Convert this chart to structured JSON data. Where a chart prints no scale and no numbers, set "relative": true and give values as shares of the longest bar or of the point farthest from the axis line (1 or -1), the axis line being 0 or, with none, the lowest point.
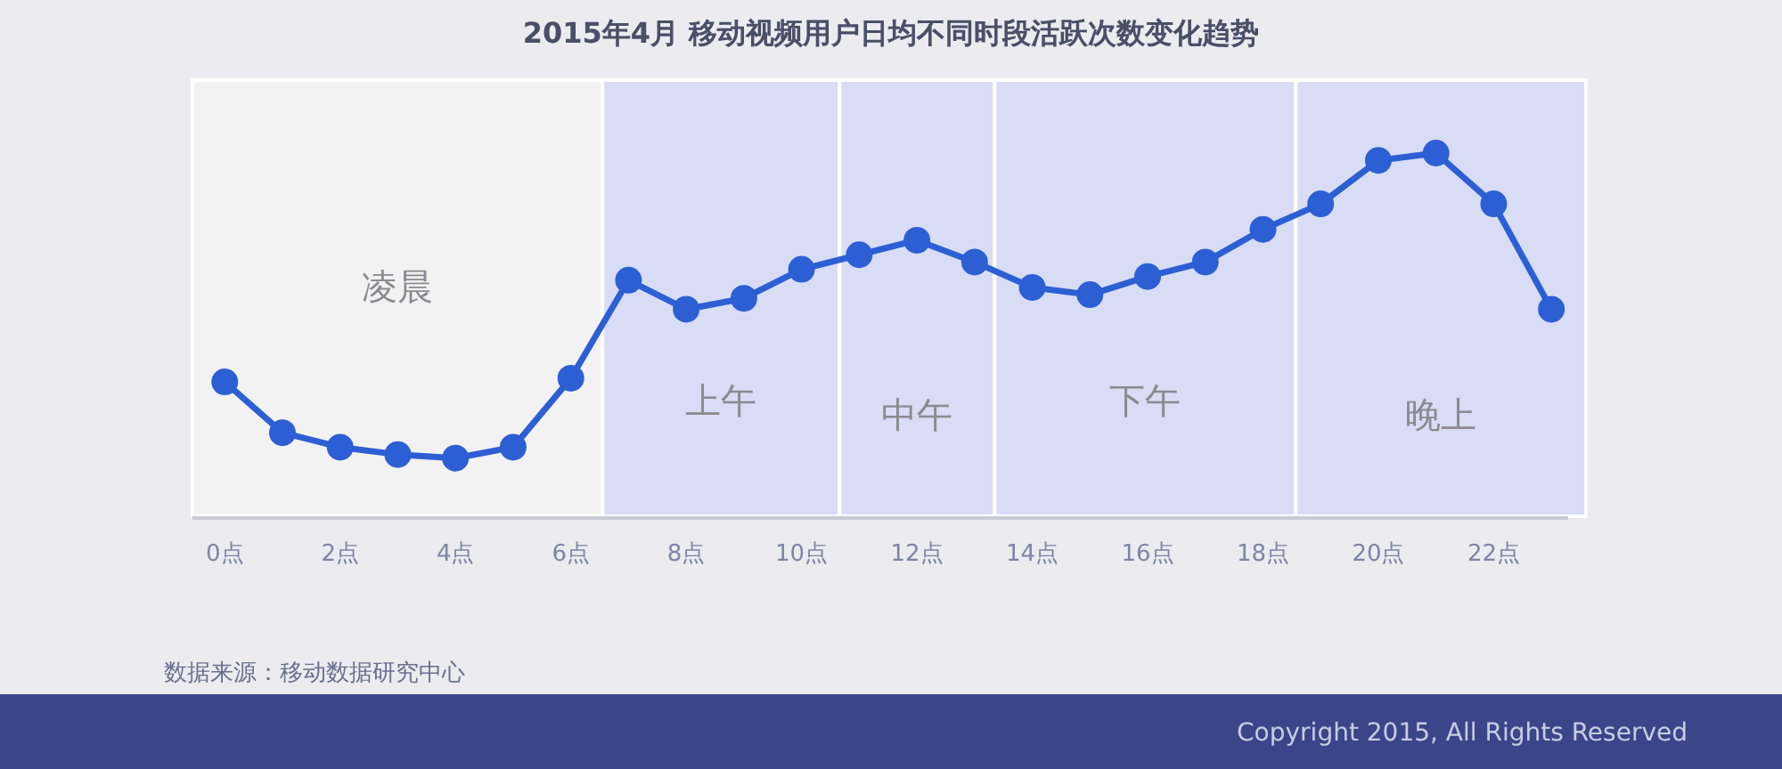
{
  "chart_data": {
    "type": "line",
    "title": "2015年4月 移动视频用户日均不同时段活跃次数变化趋势",
    "relative": true,
    "categories": [
      "0点",
      null,
      "2点",
      null,
      "4点",
      null,
      "6点",
      null,
      "8点",
      null,
      "10点",
      null,
      "12点",
      null,
      "14点",
      null,
      "16点",
      null,
      "18点",
      null,
      "20点",
      null,
      "22点",
      null
    ],
    "series": [
      {
        "color": "#2d5fd4",
        "values": [
          0.37,
          0.23,
          0.19,
          0.17,
          0.16,
          0.19,
          0.38,
          0.65,
          0.57,
          0.6,
          0.68,
          0.72,
          0.76,
          0.7,
          0.63,
          0.61,
          0.66,
          0.7,
          0.79,
          0.86,
          0.98,
          1,
          0.86,
          0.57
        ]
      }
    ],
    "marker": "circle",
    "line_style": "solid",
    "annotations": [
      "数据来源：移动数据研究中心",
      "Copyright 2015, All Rights Reserved",
      "凌晨",
      "上午",
      "中午",
      "下午",
      "晚上"
    ]
  }
}
